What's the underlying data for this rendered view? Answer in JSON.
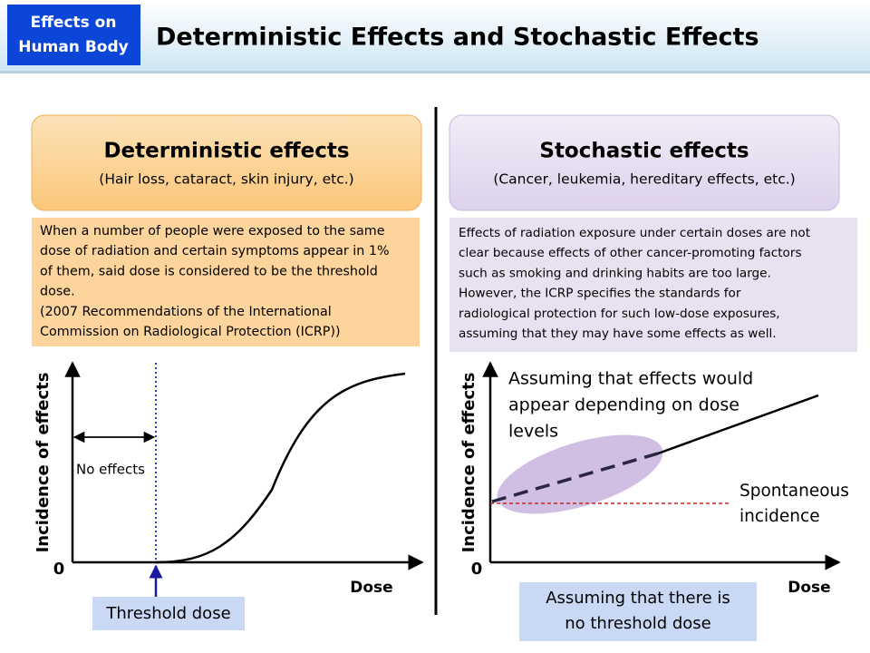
{
  "header": {
    "badge": [
      "Effects on",
      "Human Body"
    ],
    "title": "Deterministic Effects and Stochastic Effects"
  },
  "left": {
    "heading": "Deterministic effects",
    "subheading": "(Hair loss, cataract, skin injury, etc.)",
    "description": [
      "When a number of people were exposed to the same",
      "dose of radiation and certain symptoms appear in 1%",
      "of them, said dose is considered to be the threshold",
      "dose.",
      "(2007 Recommendations of the International",
      "Commission on Radiological Protection (ICRP))"
    ],
    "chart": {
      "y_label": "Incidence of effects",
      "origin": "0",
      "x_label": "Dose",
      "annotation": "No effects",
      "callout": "Threshold dose"
    }
  },
  "right": {
    "heading": "Stochastic effects",
    "subheading": "(Cancer, leukemia, hereditary effects, etc.)",
    "description": [
      "Effects of radiation exposure under certain doses are not",
      "clear because effects of other cancer-promoting factors",
      "such as smoking and drinking habits are too large.",
      "However, the ICRP specifies the standards for",
      "radiological protection for such low-dose exposures,",
      "assuming that they may have some effects as well."
    ],
    "chart": {
      "y_label": "Incidence of effects",
      "origin": "0",
      "x_label": "Dose",
      "annotation": [
        "Assuming that effects would",
        "appear depending on dose",
        "levels"
      ],
      "baseline_label": [
        "Spontaneous",
        "incidence"
      ],
      "callout": [
        "Assuming that there is",
        "no threshold dose"
      ]
    }
  }
}
